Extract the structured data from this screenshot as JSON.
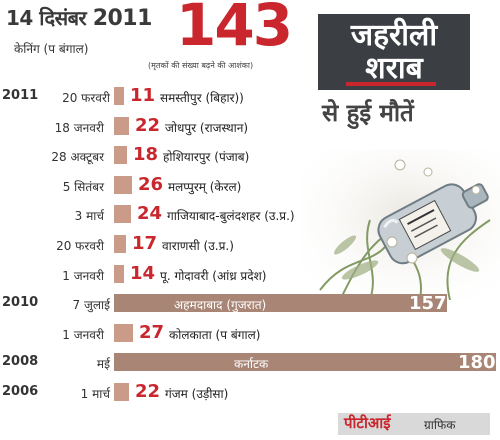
{
  "header": {
    "date": "14 दिसंबर",
    "year": "2011",
    "place": "केनिंग (प बंगाल)",
    "count": "143",
    "note": "(मृतकों की संख्या बढ़ने की आशंका)"
  },
  "title": {
    "line1": "जहरीली",
    "line2": "शराब",
    "line3": "से हुई मौतें"
  },
  "credit": {
    "brand": "पीटीआई",
    "label": "ग्राफिक"
  },
  "colors": {
    "accent": "#c9262d",
    "bar": "#c99b88",
    "bar_big": "#a98576",
    "title_bg": "#3b3f44"
  },
  "chart_data": {
    "type": "bar",
    "title": "जहरीली शराब से हुई मौतें",
    "orientation": "horizontal",
    "rows": [
      {
        "year": "2011",
        "date": "20 फरवरी",
        "value": 11,
        "place": "समस्तीपुर (बिहार))"
      },
      {
        "year": "",
        "date": "18 जनवरी",
        "value": 22,
        "place": "जोधपुर (राजस्थान)"
      },
      {
        "year": "",
        "date": "28 अक्टूबर",
        "value": 18,
        "place": "होशियारपुर (पंजाब)"
      },
      {
        "year": "",
        "date": "5 सितंबर",
        "value": 26,
        "place": "मलप्पुरम् (केरल)"
      },
      {
        "year": "",
        "date": "3 मार्च",
        "value": 24,
        "place": "गाजियाबाद-बुलंदशहर (उ.प्र.)"
      },
      {
        "year": "",
        "date": "20 फरवरी",
        "value": 17,
        "place": "वाराणसी (उ.प्र.)"
      },
      {
        "year": "",
        "date": "1 जनवरी",
        "value": 14,
        "place": "पू. गोदावरी (आंध्र प्रदेश)"
      },
      {
        "year": "2010",
        "date": "7 जुलाई",
        "value": 157,
        "place": "अहमदाबाद (गुजरात)"
      },
      {
        "year": "",
        "date": "1 जनवरी",
        "value": 27,
        "place": "कोलकाता (प बंगाल)"
      },
      {
        "year": "2008",
        "date": "मई",
        "value": 180,
        "place": "कर्नाटक"
      },
      {
        "year": "2006",
        "date": "1 मार्च",
        "value": 22,
        "place": "गंजम (उड़ीसा)"
      }
    ]
  }
}
